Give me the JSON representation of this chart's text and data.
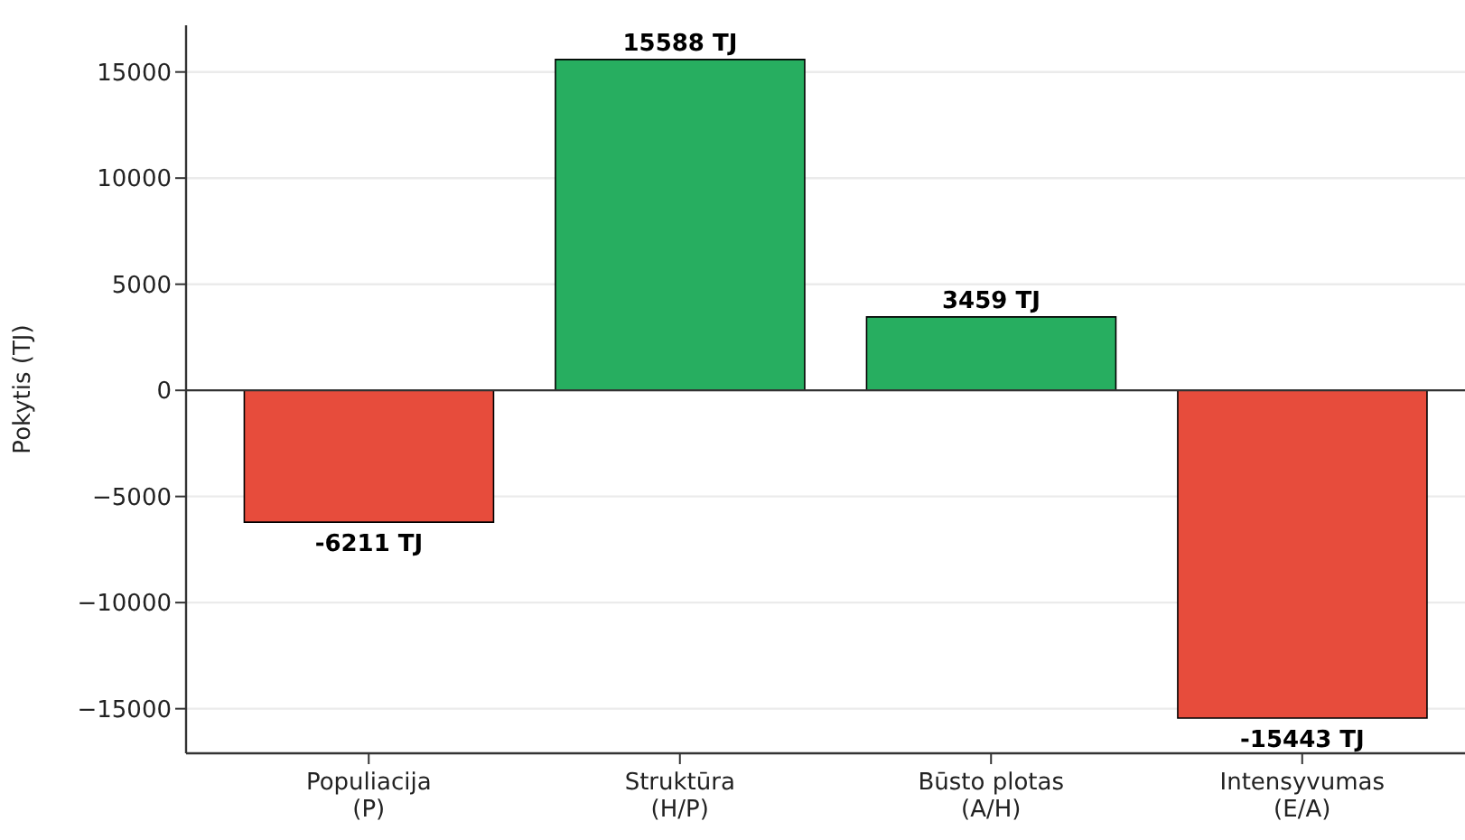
{
  "chart_data": {
    "type": "bar",
    "ylabel": "Pokytis (TJ)",
    "categories": [
      "Populiacija\n(P)",
      "Struktūra\n(H/P)",
      "Būsto plotas\n(A/H)",
      "Intensyvumas\n(E/A)"
    ],
    "values": [
      -6211,
      15588,
      3459,
      -15443
    ],
    "colors": [
      "#e74c3c",
      "#27ae60",
      "#27ae60",
      "#e74c3c"
    ],
    "value_labels": [
      "-6211 TJ",
      "15588 TJ",
      "3459 TJ",
      "-15443 TJ"
    ],
    "ylim": [
      -17100,
      17200
    ],
    "yticks": [
      {
        "value": -15000,
        "label": "−15000"
      },
      {
        "value": -10000,
        "label": "−10000"
      },
      {
        "value": -5000,
        "label": "−5000"
      },
      0,
      5000,
      10000,
      15000
    ],
    "grid": "y",
    "ref_lines": [
      {
        "axis": "y",
        "value": 0,
        "color": "#333333"
      }
    ]
  }
}
